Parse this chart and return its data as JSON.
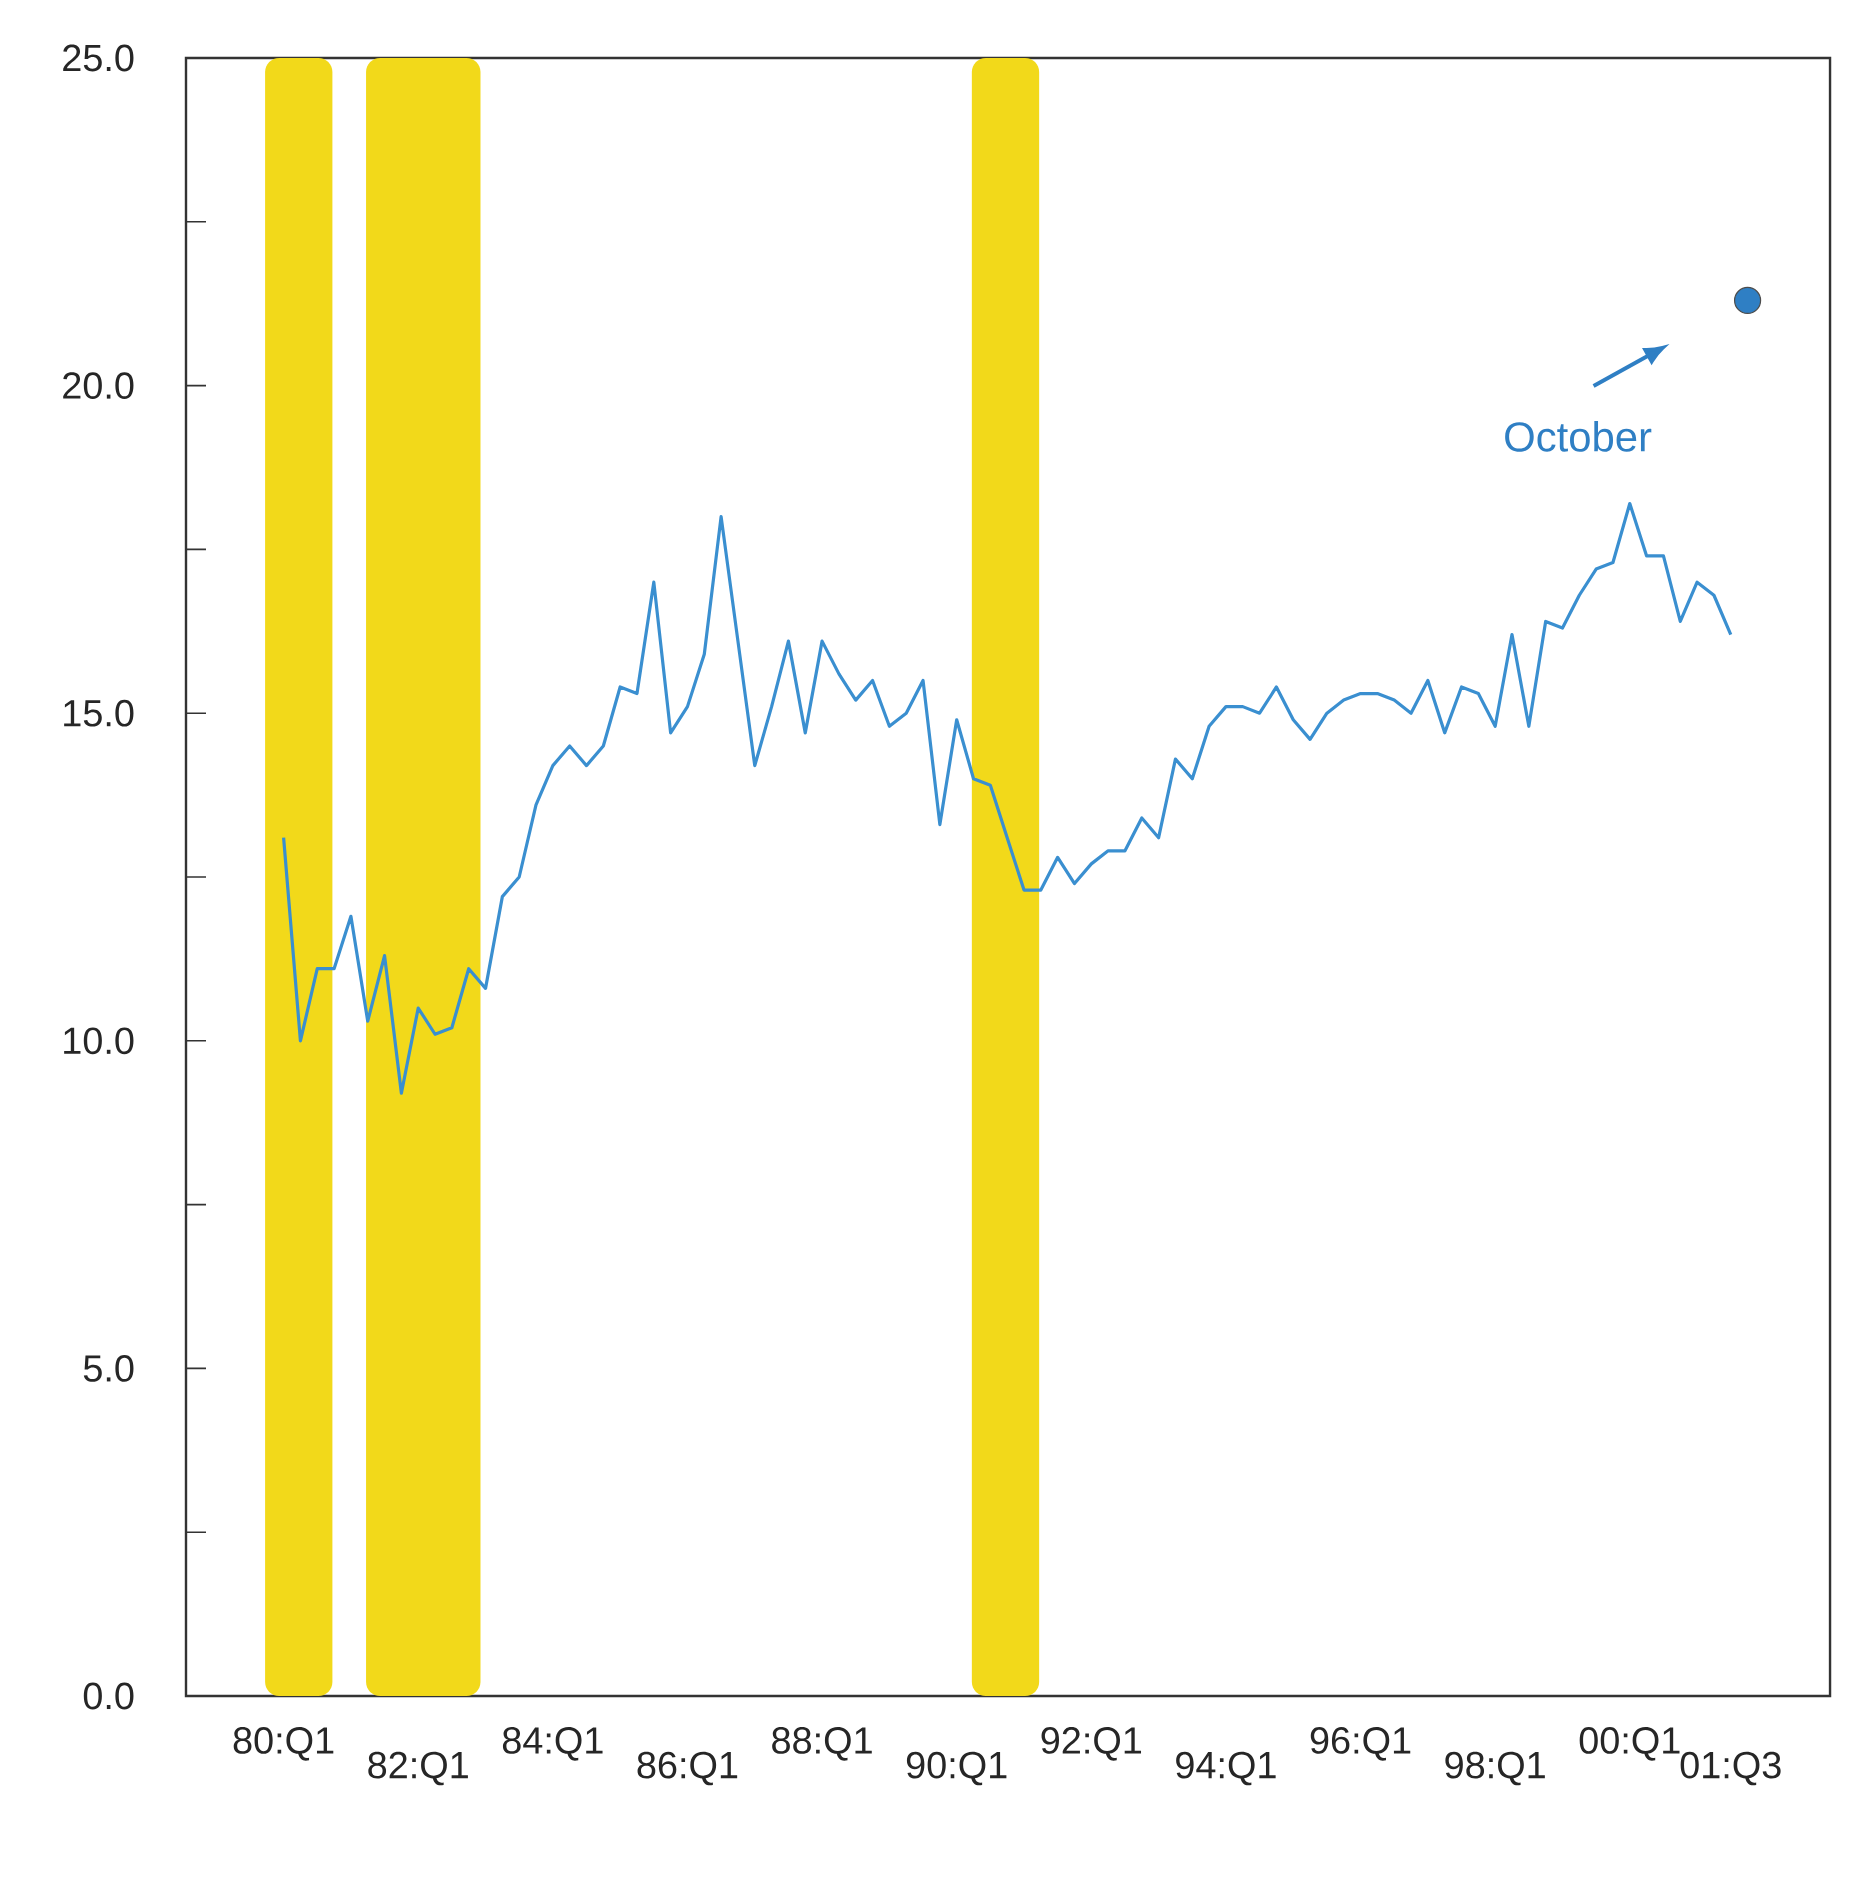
{
  "chart_data": {
    "type": "line",
    "categories": [
      "80:Q1",
      null,
      null,
      null,
      null,
      null,
      null,
      null,
      "82:Q1",
      null,
      null,
      null,
      null,
      null,
      null,
      null,
      "84:Q1",
      null,
      null,
      null,
      null,
      null,
      null,
      null,
      "86:Q1",
      null,
      null,
      null,
      null,
      null,
      null,
      null,
      "88:Q1",
      null,
      null,
      null,
      null,
      null,
      null,
      null,
      "90:Q1",
      null,
      null,
      null,
      null,
      null,
      null,
      null,
      "92:Q1",
      null,
      null,
      null,
      null,
      null,
      null,
      null,
      "94:Q1",
      null,
      null,
      null,
      null,
      null,
      null,
      null,
      "96:Q1",
      null,
      null,
      null,
      null,
      null,
      null,
      null,
      "98:Q1",
      null,
      null,
      null,
      null,
      null,
      null,
      null,
      "00:Q1",
      null,
      null,
      null,
      null,
      null,
      "01:Q3",
      null
    ],
    "series": [
      {
        "color": "#3a8fd0",
        "marker": "none",
        "values": [
          13.1,
          10.0,
          11.1,
          11.1,
          11.9,
          10.3,
          11.3,
          9.2,
          10.5,
          10.1,
          10.2,
          11.1,
          10.8,
          12.2,
          12.5,
          13.6,
          14.2,
          14.5,
          14.2,
          14.5,
          15.4,
          15.3,
          17.0,
          14.7,
          15.1,
          15.9,
          18.0,
          16.1,
          14.2,
          15.1,
          16.1,
          14.7,
          16.1,
          15.6,
          15.2,
          15.5,
          14.8,
          15.0,
          15.5,
          13.3,
          14.9,
          14.0,
          13.9,
          13.1,
          12.3,
          12.3,
          12.8,
          12.4,
          12.7,
          12.9,
          12.9,
          13.4,
          13.1,
          14.3,
          14.0,
          14.8,
          15.1,
          15.1,
          15.0,
          15.4,
          14.9,
          14.6,
          15.0,
          15.2,
          15.3,
          15.3,
          15.2,
          15.0,
          15.5,
          14.7,
          15.4,
          15.3,
          14.8,
          16.2,
          14.8,
          16.4,
          16.3,
          16.8,
          17.2,
          17.3,
          18.2,
          17.4,
          17.4,
          16.4,
          17.0,
          16.8,
          16.2,
          null
        ]
      },
      {
        "type": "scatter",
        "color": "#2f7fc4",
        "marker": "circle",
        "values": [
          null,
          null,
          null,
          null,
          null,
          null,
          null,
          null,
          null,
          null,
          null,
          null,
          null,
          null,
          null,
          null,
          null,
          null,
          null,
          null,
          null,
          null,
          null,
          null,
          null,
          null,
          null,
          null,
          null,
          null,
          null,
          null,
          null,
          null,
          null,
          null,
          null,
          null,
          null,
          null,
          null,
          null,
          null,
          null,
          null,
          null,
          null,
          null,
          null,
          null,
          null,
          null,
          null,
          null,
          null,
          null,
          null,
          null,
          null,
          null,
          null,
          null,
          null,
          null,
          null,
          null,
          null,
          null,
          null,
          null,
          null,
          null,
          null,
          null,
          null,
          null,
          null,
          null,
          null,
          null,
          null,
          null,
          null,
          null,
          null,
          null,
          null,
          21.3
        ]
      }
    ],
    "annotations": [
      "October"
    ],
    "ylim": [
      0,
      25
    ],
    "yticks": [
      {
        "value": 0,
        "label": "0.0"
      },
      {
        "value": 5,
        "label": "5.0"
      },
      {
        "value": 10,
        "label": "10.0"
      },
      {
        "value": 15,
        "label": "15.0"
      },
      {
        "value": 20,
        "label": "20.0"
      },
      {
        "value": 25,
        "label": "25.0"
      }
    ],
    "grid": false,
    "legend": false
  }
}
